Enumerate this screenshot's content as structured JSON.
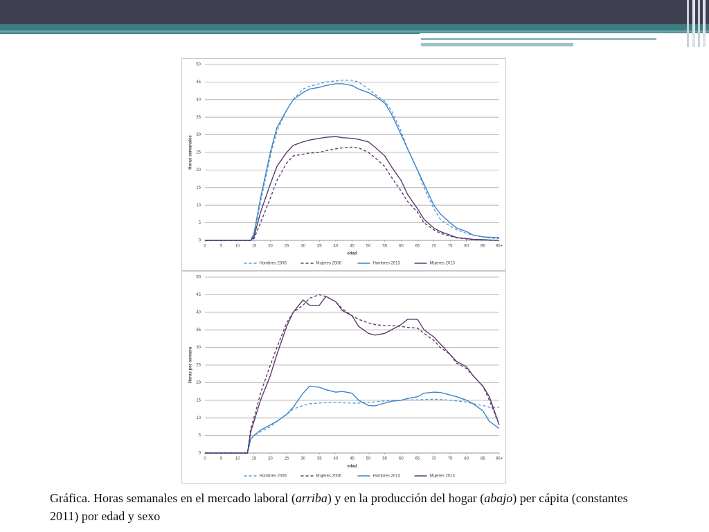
{
  "chart_data": [
    {
      "type": "line",
      "y_label": "Horas semanales",
      "x_label": "edad",
      "grid": true,
      "legend": "bottom",
      "x": [
        0,
        5,
        10,
        13,
        14,
        15,
        17,
        20,
        22,
        25,
        27,
        30,
        32,
        35,
        37,
        40,
        42,
        45,
        47,
        50,
        52,
        55,
        57,
        60,
        62,
        65,
        67,
        70,
        72,
        75,
        77,
        80,
        82,
        85,
        87,
        90
      ],
      "xlim": [
        0,
        90
      ],
      "xticks": [
        0,
        5,
        10,
        15,
        20,
        25,
        30,
        35,
        40,
        45,
        50,
        55,
        60,
        65,
        70,
        75,
        80,
        85,
        {
          "value": 90,
          "label": "90+"
        }
      ],
      "ylim": [
        0,
        50
      ],
      "yticks": [
        0,
        5,
        10,
        15,
        20,
        25,
        30,
        35,
        40,
        45,
        50
      ],
      "series": [
        {
          "name": "Hombres 2006",
          "color": "#5b9bd5",
          "style": "dashed",
          "values": [
            0,
            0,
            0,
            0,
            0,
            1.5,
            11,
            24,
            31,
            37,
            40,
            43,
            43.8,
            44.5,
            45,
            45.3,
            45.5,
            45.5,
            45,
            43,
            41.5,
            39.5,
            37,
            31,
            26,
            20,
            15,
            9,
            6,
            4,
            3,
            2,
            1.5,
            1,
            0.7,
            0.5
          ]
        },
        {
          "name": "Mujeres 2006",
          "color": "#5a3b6e",
          "style": "dashed",
          "values": [
            0,
            0,
            0,
            0,
            0,
            0.5,
            5,
            12,
            17,
            22,
            24,
            24.5,
            24.8,
            25,
            25.5,
            26,
            26.3,
            26.5,
            26.3,
            25,
            23.5,
            21,
            18,
            14,
            11,
            8,
            5,
            3,
            2,
            1.2,
            0.7,
            0.4,
            0.2,
            0.1,
            0,
            0
          ]
        },
        {
          "name": "Hombres 2013",
          "color": "#3a84c9",
          "style": "solid",
          "values": [
            0,
            0,
            0,
            0,
            0,
            2,
            12,
            25,
            32,
            37,
            40,
            42,
            43,
            43.5,
            44,
            44.5,
            44.5,
            44,
            43,
            42,
            41,
            39,
            36,
            30,
            26,
            20,
            16,
            10,
            7.5,
            5,
            3.5,
            2.5,
            1.5,
            1,
            0.9,
            0.8
          ]
        },
        {
          "name": "Mujeres 2013",
          "color": "#5a3b6e",
          "style": "solid",
          "values": [
            0,
            0,
            0,
            0,
            0,
            1,
            8,
            16,
            21,
            25,
            27,
            28,
            28.5,
            29,
            29.3,
            29.5,
            29.2,
            29,
            28.7,
            28,
            26.5,
            24,
            21,
            17,
            13,
            9,
            6,
            3.5,
            2.5,
            1.5,
            0.8,
            0.5,
            0.3,
            0.2,
            0.1,
            0
          ]
        }
      ]
    },
    {
      "type": "line",
      "y_label": "Horas por semana",
      "x_label": "edad",
      "grid": true,
      "legend": "bottom",
      "x": [
        0,
        5,
        10,
        13,
        14,
        15,
        17,
        20,
        22,
        25,
        27,
        30,
        32,
        35,
        37,
        40,
        42,
        45,
        47,
        50,
        52,
        55,
        57,
        60,
        62,
        65,
        67,
        70,
        72,
        75,
        77,
        80,
        82,
        85,
        87,
        90
      ],
      "xlim": [
        0,
        90
      ],
      "xticks": [
        0,
        5,
        10,
        15,
        20,
        25,
        30,
        35,
        40,
        45,
        50,
        55,
        60,
        65,
        70,
        75,
        80,
        85,
        {
          "value": 90,
          "label": "90+"
        }
      ],
      "ylim": [
        0,
        50
      ],
      "yticks": [
        0,
        5,
        10,
        15,
        20,
        25,
        30,
        35,
        40,
        45,
        50
      ],
      "series": [
        {
          "name": "Hombres 2006",
          "color": "#5b9bd5",
          "style": "dashed",
          "values": [
            0,
            0,
            0,
            0,
            4,
            5,
            6,
            7.5,
            9,
            11,
            12.5,
            13.5,
            14,
            14.2,
            14.3,
            14.4,
            14.3,
            14.2,
            14.2,
            14.4,
            14.5,
            14.8,
            14.9,
            15,
            15.1,
            15.1,
            15.2,
            15.3,
            15.2,
            15,
            14.8,
            14.5,
            14,
            13.5,
            13,
            13
          ]
        },
        {
          "name": "Mujeres 2006",
          "color": "#5a3b6e",
          "style": "dashed",
          "values": [
            0,
            0,
            0,
            0,
            7,
            10,
            17,
            25,
            30,
            37,
            40,
            42,
            44,
            45,
            44.5,
            43,
            41,
            39,
            38,
            37,
            36.5,
            36.2,
            36.2,
            36,
            35.7,
            35.5,
            34,
            32,
            30,
            28,
            25.5,
            24,
            22,
            19,
            15,
            8
          ]
        },
        {
          "name": "Hombres 2013",
          "color": "#3a84c9",
          "style": "solid",
          "values": [
            0,
            0,
            0,
            0,
            4,
            5,
            6.5,
            8,
            9,
            11,
            13,
            17,
            19,
            18.7,
            18,
            17.3,
            17.5,
            17,
            15,
            13.5,
            13.4,
            14.2,
            14.7,
            15,
            15.5,
            16,
            17,
            17.3,
            17.2,
            16.5,
            16,
            15,
            14,
            12,
            9,
            7
          ]
        },
        {
          "name": "Mujeres 2013",
          "color": "#5a3b6e",
          "style": "solid",
          "values": [
            0,
            0,
            0,
            0,
            6,
            9,
            15,
            22,
            28,
            36,
            40,
            43.5,
            42,
            42,
            44.5,
            43,
            40.5,
            39,
            36,
            34,
            33.5,
            34,
            35,
            36.5,
            38,
            38,
            35,
            33,
            31,
            28,
            26,
            24.5,
            22,
            19,
            16,
            8
          ]
        }
      ]
    }
  ],
  "caption": {
    "parts": [
      "Gráfica. Horas semanales en el mercado laboral (",
      "arriba",
      ") y en la producción del hogar (",
      "abajo",
      ") per cápita (constantes 2011) por edad y sexo"
    ]
  }
}
